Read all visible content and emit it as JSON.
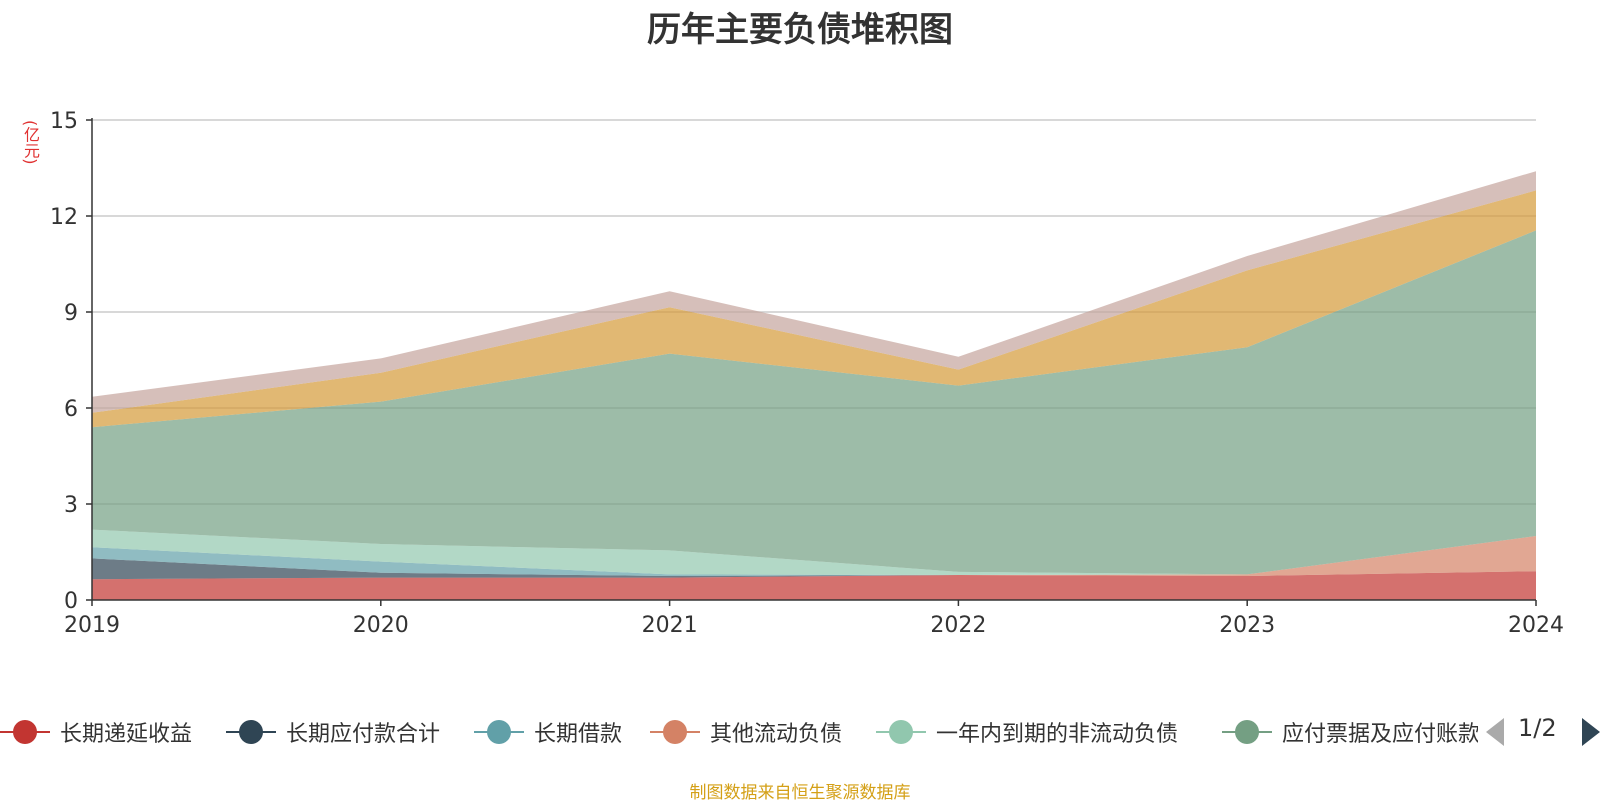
{
  "title": "历年主要负债堆积图",
  "unit_label": "(亿元)",
  "footer": "制图数据来自恒生聚源数据库",
  "pager": {
    "text": "1/2"
  },
  "legend": [
    {
      "name": "长期递延收益",
      "color": "#c23531"
    },
    {
      "name": "长期应付款合计",
      "color": "#2f4554"
    },
    {
      "name": "长期借款",
      "color": "#61a0a8"
    },
    {
      "name": "其他流动负债",
      "color": "#d48265"
    },
    {
      "name": "一年内到期的非流动负债",
      "color": "#91c7ae"
    },
    {
      "name": "应付票据及应付账款",
      "color": "#749f83"
    }
  ],
  "chart_data": {
    "type": "area",
    "stacked": true,
    "title": "历年主要负债堆积图",
    "ylabel": "(亿元)",
    "x": [
      "2019",
      "2020",
      "2021",
      "2022",
      "2023",
      "2024"
    ],
    "ylim": [
      0,
      15
    ],
    "yticks": [
      0,
      3,
      6,
      9,
      12,
      15
    ],
    "grid": true,
    "legend_position": "bottom",
    "series": [
      {
        "name": "长期递延收益",
        "color": "#c23531",
        "values": [
          0.65,
          0.7,
          0.7,
          0.78,
          0.75,
          0.9
        ]
      },
      {
        "name": "长期应付款合计",
        "color": "#2f4554",
        "values": [
          0.65,
          0.15,
          0.05,
          0,
          0,
          0
        ]
      },
      {
        "name": "长期借款",
        "color": "#61a0a8",
        "values": [
          0.35,
          0.35,
          0.05,
          0,
          0,
          0
        ]
      },
      {
        "name": "其他流动负债",
        "color": "#d48265",
        "values": [
          0,
          0,
          0,
          0,
          0.05,
          1.1
        ]
      },
      {
        "name": "一年内到期的非流动负债",
        "color": "#91c7ae",
        "values": [
          0.55,
          0.55,
          0.75,
          0.1,
          0,
          0
        ]
      },
      {
        "name": "应付票据及应付账款",
        "color": "#749f83",
        "values": [
          3.2,
          4.45,
          6.15,
          5.82,
          7.1,
          9.55
        ]
      },
      {
        "color": "#d49a37",
        "values": [
          0.45,
          0.9,
          1.45,
          0.5,
          2.4,
          1.25
        ]
      },
      {
        "color": "#c4a49c",
        "values": [
          0.5,
          0.45,
          0.5,
          0.4,
          0.45,
          0.6
        ]
      }
    ]
  }
}
